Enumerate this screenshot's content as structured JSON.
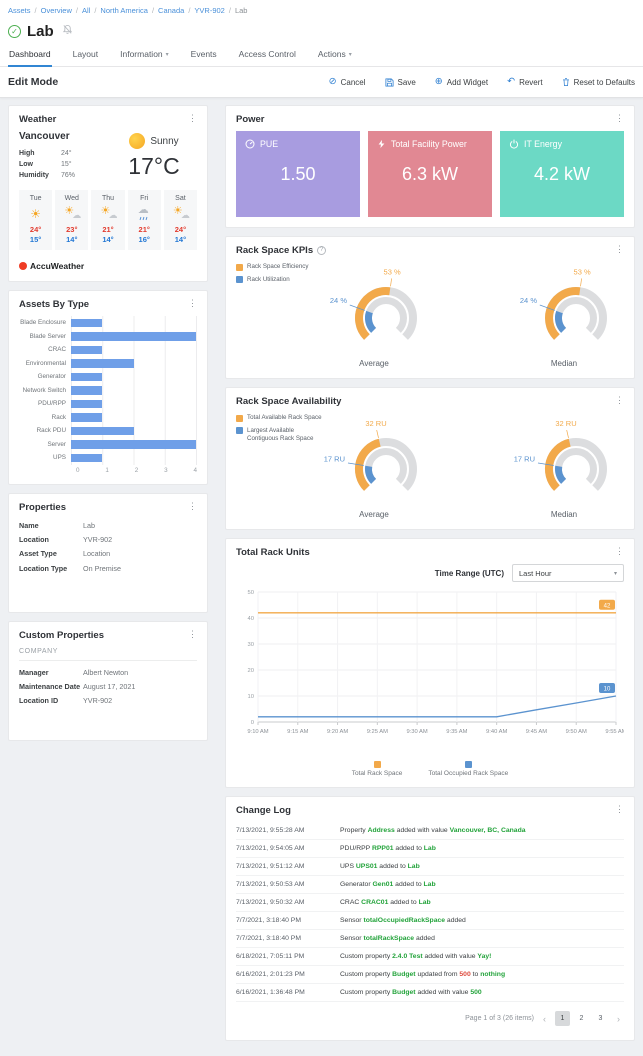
{
  "icons": {
    "kebab": "⋮",
    "caret_down": "▾",
    "check": "✓",
    "help": "?",
    "cancel": "⊘",
    "add": "⊕",
    "revert": "↶",
    "prev": "‹",
    "next": "›",
    "sun": "☀",
    "cloud": "☁"
  },
  "colors": {
    "accent_blue": "#2e7fd1",
    "tab_underline": "#3186d3",
    "green": "#23a33b",
    "red": "#dd4b3e",
    "orange": "#f2a94a",
    "chart_blue": "#5b93cf",
    "bar_blue": "#6f9fe8",
    "pue_purple": "#a89ce0",
    "power_pink": "#e18893",
    "energy_teal": "#6cd9c5"
  },
  "breadcrumb": {
    "links": [
      "Assets",
      "Overview",
      "All",
      "North America",
      "Canada",
      "YVR-902"
    ],
    "current": "Lab",
    "separator": "/"
  },
  "page": {
    "title": "Lab"
  },
  "tabs": [
    {
      "label": "Dashboard",
      "active": true,
      "caret": false
    },
    {
      "label": "Layout",
      "active": false,
      "caret": false
    },
    {
      "label": "Information",
      "active": false,
      "caret": true
    },
    {
      "label": "Events",
      "active": false,
      "caret": false
    },
    {
      "label": "Access Control",
      "active": false,
      "caret": false
    },
    {
      "label": "Actions",
      "active": false,
      "caret": true
    }
  ],
  "edit_bar": {
    "mode_label": "Edit Mode",
    "buttons": [
      {
        "label": "Cancel",
        "icon": "cancel-icon"
      },
      {
        "label": "Save",
        "icon": "save-icon"
      },
      {
        "label": "Add Widget",
        "icon": "add-widget-icon"
      },
      {
        "label": "Revert",
        "icon": "revert-icon"
      },
      {
        "label": "Reset to Defaults",
        "icon": "reset-icon"
      }
    ]
  },
  "weather": {
    "title": "Weather",
    "city": "Vancouver",
    "condition": "Sunny",
    "temperature": "17°C",
    "stats": [
      {
        "label": "High",
        "value": "24°"
      },
      {
        "label": "Low",
        "value": "15°"
      },
      {
        "label": "Humidity",
        "value": "76%"
      }
    ],
    "forecast": [
      {
        "day": "Tue",
        "icon": "sunny",
        "high": "24°",
        "low": "15°"
      },
      {
        "day": "Wed",
        "icon": "partly-sunny",
        "high": "23°",
        "low": "14°"
      },
      {
        "day": "Thu",
        "icon": "partly-sunny",
        "high": "21°",
        "low": "14°"
      },
      {
        "day": "Fri",
        "icon": "rain",
        "high": "21°",
        "low": "16°"
      },
      {
        "day": "Sat",
        "icon": "partly-sunny",
        "high": "24°",
        "low": "14°"
      }
    ],
    "attribution": "AccuWeather"
  },
  "properties": {
    "title": "Properties",
    "rows": [
      {
        "label": "Name",
        "value": "Lab"
      },
      {
        "label": "Location",
        "value": "YVR-902"
      },
      {
        "label": "Asset Type",
        "value": "Location"
      },
      {
        "label": "Location Type",
        "value": "On Premise"
      }
    ]
  },
  "custom_properties": {
    "title": "Custom Properties",
    "group": "COMPANY",
    "rows": [
      {
        "label": "Manager",
        "value": "Albert Newton"
      },
      {
        "label": "Maintenance Date",
        "value": "August 17, 2021"
      },
      {
        "label": "Location ID",
        "value": "YVR-902"
      }
    ]
  },
  "power": {
    "title": "Power",
    "tiles": [
      {
        "label": "PUE",
        "value": "1.50",
        "color": "#a89ce0",
        "icon": "gauge-icon"
      },
      {
        "label": "Total Facility Power",
        "value": "6.3 kW",
        "color": "#e18893",
        "icon": "lightning-icon"
      },
      {
        "label": "IT Energy",
        "value": "4.2 kW",
        "color": "#6cd9c5",
        "icon": "power-icon"
      }
    ]
  },
  "chart_data": [
    {
      "id": "assets_by_type",
      "type": "bar",
      "orientation": "horizontal",
      "title": "Assets By Type",
      "categories": [
        "Blade Enclosure",
        "Blade Server",
        "CRAC",
        "Environmental",
        "Generator",
        "Network Switch",
        "PDU/RPP",
        "Rack",
        "Rack PDU",
        "Server",
        "UPS"
      ],
      "values": [
        1,
        4,
        1,
        2,
        1,
        1,
        1,
        1,
        2,
        4,
        1
      ],
      "xlim": [
        0,
        4
      ],
      "x_ticks": [
        0,
        1,
        2,
        3,
        4
      ],
      "bar_color": "#6f9fe8",
      "grid": true
    },
    {
      "id": "rack_space_kpis",
      "type": "gauge",
      "title": "Rack Space KPIs",
      "has_help_icon": true,
      "legend": [
        {
          "label": "Rack Space Efficiency",
          "color": "#f2a94a"
        },
        {
          "label": "Rack Utilization",
          "color": "#5b93cf"
        }
      ],
      "gauges": [
        {
          "label": "Average",
          "outer": {
            "text": "53 %",
            "fraction": 0.53,
            "color": "#f2a94a"
          },
          "inner": {
            "text": "24 %",
            "fraction": 0.24,
            "color": "#5b93cf"
          }
        },
        {
          "label": "Median",
          "outer": {
            "text": "53 %",
            "fraction": 0.53,
            "color": "#f2a94a"
          },
          "inner": {
            "text": "24 %",
            "fraction": 0.24,
            "color": "#5b93cf"
          }
        }
      ]
    },
    {
      "id": "rack_space_availability",
      "type": "gauge",
      "title": "Rack Space Availability",
      "has_help_icon": false,
      "legend": [
        {
          "label": "Total Available Rack Space",
          "color": "#f2a94a"
        },
        {
          "label": "Largest Available Contiguous Rack Space",
          "color": "#5b93cf"
        }
      ],
      "gauges": [
        {
          "label": "Average",
          "outer": {
            "text": "32 RU",
            "fraction": 0.45,
            "color": "#f2a94a"
          },
          "inner": {
            "text": "17 RU",
            "fraction": 0.2,
            "color": "#5b93cf"
          }
        },
        {
          "label": "Median",
          "outer": {
            "text": "32 RU",
            "fraction": 0.45,
            "color": "#f2a94a"
          },
          "inner": {
            "text": "17 RU",
            "fraction": 0.2,
            "color": "#5b93cf"
          }
        }
      ]
    },
    {
      "id": "total_rack_units",
      "type": "line",
      "title": "Total Rack Units",
      "controls": {
        "label": "Time Range (UTC)",
        "selected": "Last Hour"
      },
      "x": [
        "9:10 AM",
        "9:15 AM",
        "9:20 AM",
        "9:25 AM",
        "9:30 AM",
        "9:35 AM",
        "9:40 AM",
        "9:45 AM",
        "9:50 AM",
        "9:55 AM"
      ],
      "series": [
        {
          "name": "Total Rack Space",
          "color": "#f2a94a",
          "values": [
            42,
            42,
            42,
            42,
            42,
            42,
            42,
            42,
            42,
            42
          ],
          "end_label": "42"
        },
        {
          "name": "Total Occupied Rack Space",
          "color": "#5b93cf",
          "values": [
            2,
            2,
            2,
            2,
            2,
            2,
            2,
            4.7,
            7.3,
            10
          ],
          "end_label": "10"
        }
      ],
      "ylim": [
        0,
        50
      ],
      "y_ticks": [
        0,
        10,
        20,
        30,
        40,
        50
      ],
      "grid": true,
      "legend_position": "bottom"
    }
  ],
  "change_log": {
    "title": "Change Log",
    "rows": [
      {
        "time": "7/13/2021, 9:55:28 AM",
        "segments": [
          {
            "text": "Property ",
            "style": "plain"
          },
          {
            "text": "Address",
            "style": "green"
          },
          {
            "text": " added with value ",
            "style": "plain"
          },
          {
            "text": "Vancouver, BC, Canada",
            "style": "green"
          }
        ]
      },
      {
        "time": "7/13/2021, 9:54:05 AM",
        "segments": [
          {
            "text": "PDU/RPP ",
            "style": "plain"
          },
          {
            "text": "RPP01",
            "style": "green"
          },
          {
            "text": " added to ",
            "style": "plain"
          },
          {
            "text": "Lab",
            "style": "green"
          }
        ]
      },
      {
        "time": "7/13/2021, 9:51:12 AM",
        "segments": [
          {
            "text": "UPS ",
            "style": "plain"
          },
          {
            "text": "UPS01",
            "style": "green"
          },
          {
            "text": " added to ",
            "style": "plain"
          },
          {
            "text": "Lab",
            "style": "green"
          }
        ]
      },
      {
        "time": "7/13/2021, 9:50:53 AM",
        "segments": [
          {
            "text": "Generator ",
            "style": "plain"
          },
          {
            "text": "Gen01",
            "style": "green"
          },
          {
            "text": " added to ",
            "style": "plain"
          },
          {
            "text": "Lab",
            "style": "green"
          }
        ]
      },
      {
        "time": "7/13/2021, 9:50:32 AM",
        "segments": [
          {
            "text": "CRAC ",
            "style": "plain"
          },
          {
            "text": "CRAC01",
            "style": "green"
          },
          {
            "text": " added to ",
            "style": "plain"
          },
          {
            "text": "Lab",
            "style": "green"
          }
        ]
      },
      {
        "time": "7/7/2021, 3:18:40 PM",
        "segments": [
          {
            "text": "Sensor ",
            "style": "plain"
          },
          {
            "text": "totalOccupiedRackSpace",
            "style": "green"
          },
          {
            "text": " added",
            "style": "plain"
          }
        ]
      },
      {
        "time": "7/7/2021, 3:18:40 PM",
        "segments": [
          {
            "text": "Sensor ",
            "style": "plain"
          },
          {
            "text": "totalRackSpace",
            "style": "green"
          },
          {
            "text": " added",
            "style": "plain"
          }
        ]
      },
      {
        "time": "6/18/2021, 7:05:11 PM",
        "segments": [
          {
            "text": "Custom property ",
            "style": "plain"
          },
          {
            "text": "2.4.0 Test",
            "style": "green"
          },
          {
            "text": " added with value ",
            "style": "plain"
          },
          {
            "text": "Yay!",
            "style": "green"
          }
        ]
      },
      {
        "time": "6/16/2021, 2:01:23 PM",
        "segments": [
          {
            "text": "Custom property ",
            "style": "plain"
          },
          {
            "text": "Budget",
            "style": "green"
          },
          {
            "text": " updated from ",
            "style": "plain"
          },
          {
            "text": "500",
            "style": "red"
          },
          {
            "text": " to ",
            "style": "plain"
          },
          {
            "text": "nothing",
            "style": "green"
          }
        ]
      },
      {
        "time": "6/16/2021, 1:36:48 PM",
        "segments": [
          {
            "text": "Custom property ",
            "style": "plain"
          },
          {
            "text": "Budget",
            "style": "green"
          },
          {
            "text": " added with value ",
            "style": "plain"
          },
          {
            "text": "500",
            "style": "green"
          }
        ]
      }
    ],
    "pagination": {
      "summary": "Page 1 of 3 (26 items)",
      "pages": [
        "1",
        "2",
        "3"
      ],
      "active": "1"
    }
  }
}
